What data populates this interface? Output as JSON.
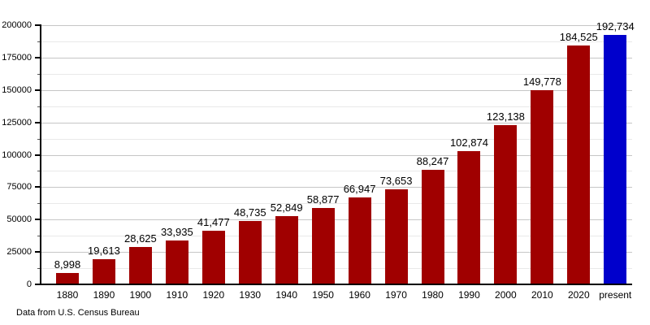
{
  "footer": {
    "text": "Data from U.S. Census Bureau"
  },
  "chart_data": {
    "type": "bar",
    "title": "",
    "xlabel": "",
    "ylabel": "",
    "ylim": [
      0,
      200000
    ],
    "y_major_step": 25000,
    "y_minor_step": 12500,
    "grid": true,
    "legend": "none",
    "y_tick_labels": [
      "0",
      "25000",
      "50000",
      "75000",
      "100000",
      "125000",
      "150000",
      "175000",
      "200000"
    ],
    "categories": [
      "1880",
      "1890",
      "1900",
      "1910",
      "1920",
      "1930",
      "1940",
      "1950",
      "1960",
      "1970",
      "1980",
      "1990",
      "2000",
      "2010",
      "2020",
      "present"
    ],
    "values": [
      8998,
      19613,
      28625,
      33935,
      41477,
      48735,
      52849,
      58877,
      66947,
      73653,
      88247,
      102874,
      123138,
      149778,
      184525,
      192734
    ],
    "value_labels": [
      "8,998",
      "19,613",
      "28,625",
      "33,935",
      "41,477",
      "48,735",
      "52,849",
      "58,877",
      "66,947",
      "73,653",
      "88,247",
      "102,874",
      "123,138",
      "149,778",
      "184,525",
      "192,734"
    ],
    "bar_color": "#A00000",
    "highlight_color": "#0000CC",
    "colors": [
      "#A00000",
      "#A00000",
      "#A00000",
      "#A00000",
      "#A00000",
      "#A00000",
      "#A00000",
      "#A00000",
      "#A00000",
      "#A00000",
      "#A00000",
      "#A00000",
      "#A00000",
      "#A00000",
      "#A00000",
      "#0000CC"
    ],
    "annotation": "Data from U.S. Census Bureau"
  }
}
